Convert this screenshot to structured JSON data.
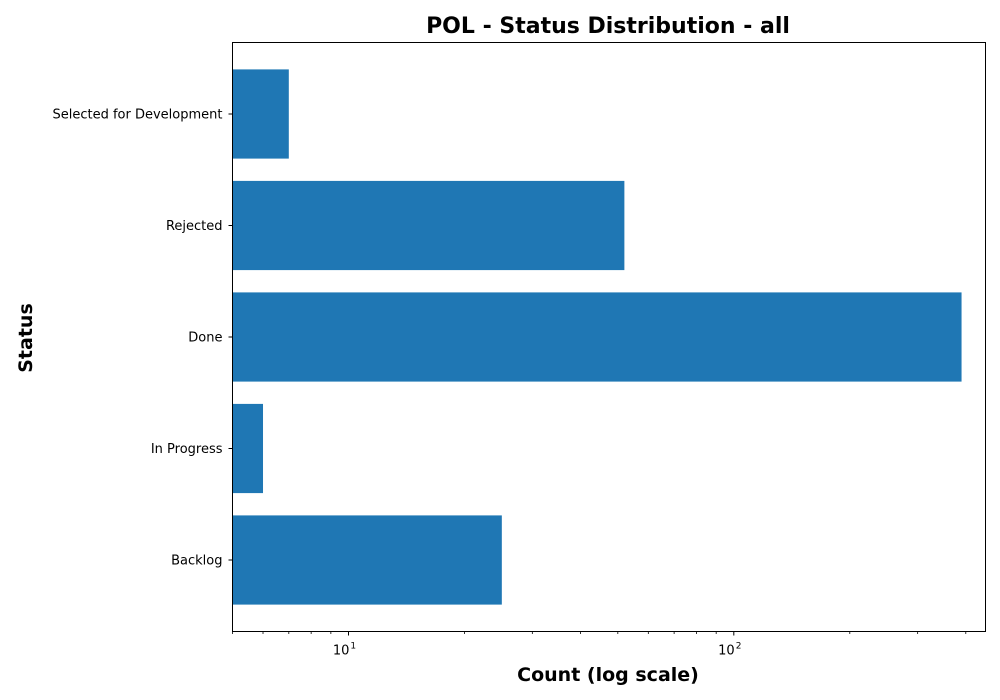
{
  "chart_data": {
    "type": "bar",
    "orientation": "horizontal",
    "title": "POL - Status Distribution - all",
    "xlabel": "Count (log scale)",
    "ylabel": "Status",
    "xscale": "log",
    "xlim": [
      5,
      450
    ],
    "categories": [
      "Backlog",
      "In Progress",
      "Done",
      "Rejected",
      "Selected for Development"
    ],
    "values": [
      25,
      6,
      390,
      52,
      7
    ],
    "bar_color": "#1f77b4",
    "grid": false,
    "legend": "none",
    "x_ticks": [
      {
        "value": 10,
        "base": "10",
        "exp": "1"
      },
      {
        "value": 100,
        "base": "10",
        "exp": "2"
      }
    ]
  }
}
